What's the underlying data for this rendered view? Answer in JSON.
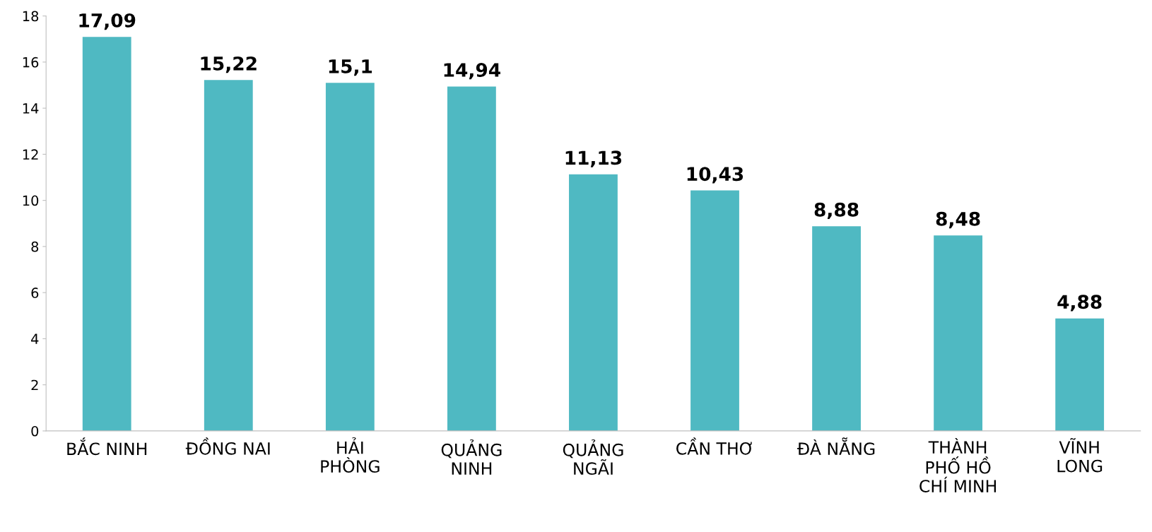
{
  "chart_data": {
    "type": "bar",
    "categories": [
      "BẮC NINH",
      "ĐỒNG NAI",
      "HẢI PHÒNG",
      "QUẢNG NINH",
      "QUẢNG NGÃI",
      "CẦN THƠ",
      "ĐÀ NẴNG",
      "THÀNH PHỐ HỒ CHÍ MINH",
      "VĨNH LONG"
    ],
    "values": [
      17.09,
      15.22,
      15.1,
      14.94,
      11.13,
      10.43,
      8.88,
      8.48,
      4.88
    ],
    "value_labels": [
      "17,09",
      "15,22",
      "15,1",
      "14,94",
      "11,13",
      "10,43",
      "8,88",
      "8,48",
      "4,88"
    ],
    "color": "#4fb9c2",
    "ylim": [
      0,
      18
    ],
    "yticks": [
      0,
      2,
      4,
      6,
      8,
      10,
      12,
      14,
      16,
      18
    ],
    "grid": false
  }
}
